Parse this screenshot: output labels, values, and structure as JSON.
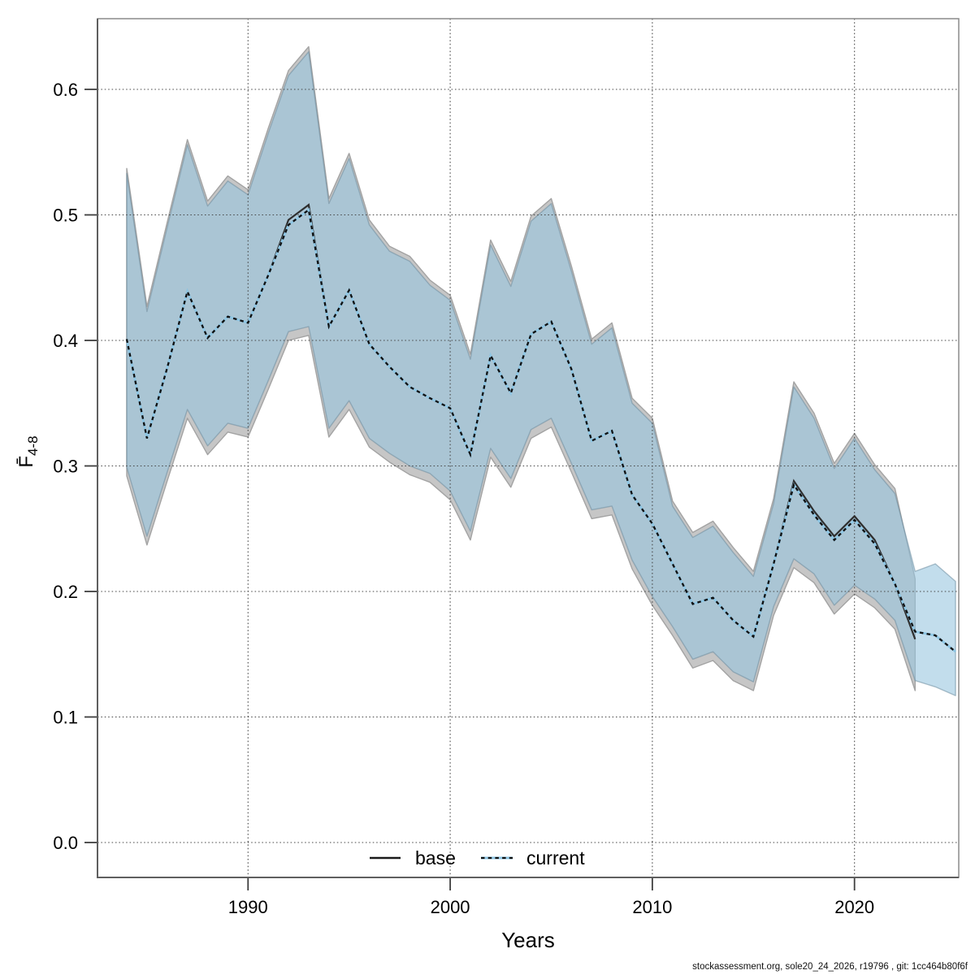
{
  "chart_data": {
    "type": "line",
    "title": "",
    "xlabel": "Years",
    "ylabel": {
      "base": "F̄",
      "sub": "4-8"
    },
    "x_ticks": [
      1990,
      2000,
      2010,
      2020
    ],
    "y_ticks": {
      "values": [
        0.0,
        0.1,
        0.2,
        0.3,
        0.4,
        0.5,
        0.6
      ],
      "labels": [
        "0.0",
        "0.1",
        "0.2",
        "0.3",
        "0.4",
        "0.5",
        "0.6"
      ]
    },
    "xlim": [
      1983.4,
      2026
    ],
    "ylim": [
      0,
      0.656
    ],
    "grid": true,
    "years": [
      1984,
      1985,
      1986,
      1987,
      1988,
      1989,
      1990,
      1991,
      1992,
      1993,
      1994,
      1995,
      1996,
      1997,
      1998,
      1999,
      2000,
      2001,
      2002,
      2003,
      2004,
      2005,
      2006,
      2007,
      2008,
      2009,
      2010,
      2011,
      2012,
      2013,
      2014,
      2015,
      2016,
      2017,
      2018,
      2019,
      2020,
      2021,
      2022,
      2023,
      2024,
      2025
    ],
    "series": [
      {
        "name": "base",
        "line_style": "solid",
        "line_color": "#2e2e2e",
        "band_fill": "#c6c6c6",
        "band_stroke": "#a3a3a3",
        "values": [
          0.401,
          0.322,
          0.378,
          0.439,
          0.402,
          0.419,
          0.414,
          0.452,
          0.496,
          0.508,
          0.411,
          0.44,
          0.397,
          0.379,
          0.363,
          0.354,
          0.346,
          0.309,
          0.388,
          0.358,
          0.405,
          0.415,
          0.377,
          0.32,
          0.328,
          0.277,
          0.254,
          0.222,
          0.19,
          0.195,
          0.177,
          0.164,
          0.222,
          0.288,
          0.264,
          0.244,
          0.26,
          0.241,
          0.206,
          0.162
        ],
        "upper": [
          0.537,
          0.427,
          0.494,
          0.56,
          0.511,
          0.531,
          0.52,
          0.569,
          0.615,
          0.634,
          0.513,
          0.549,
          0.496,
          0.475,
          0.467,
          0.448,
          0.436,
          0.389,
          0.48,
          0.447,
          0.499,
          0.513,
          0.459,
          0.401,
          0.414,
          0.354,
          0.338,
          0.272,
          0.247,
          0.256,
          0.235,
          0.216,
          0.274,
          0.367,
          0.342,
          0.302,
          0.326,
          0.301,
          0.282,
          0.21
        ],
        "lower": [
          0.292,
          0.237,
          0.288,
          0.338,
          0.309,
          0.327,
          0.323,
          0.361,
          0.4,
          0.404,
          0.323,
          0.345,
          0.315,
          0.303,
          0.293,
          0.287,
          0.273,
          0.241,
          0.307,
          0.283,
          0.322,
          0.331,
          0.295,
          0.258,
          0.261,
          0.218,
          0.189,
          0.165,
          0.139,
          0.145,
          0.129,
          0.121,
          0.181,
          0.219,
          0.207,
          0.182,
          0.198,
          0.187,
          0.17,
          0.121
        ]
      },
      {
        "name": "current",
        "line_style": "dashed",
        "line_color": "#101010",
        "line_under_color": "#8ec6e4",
        "band_fill": "rgba(150,196,222,0.58)",
        "band_stroke": "rgba(110,140,158,0.55)",
        "values": [
          0.401,
          0.322,
          0.378,
          0.439,
          0.402,
          0.419,
          0.414,
          0.452,
          0.492,
          0.504,
          0.411,
          0.44,
          0.397,
          0.379,
          0.363,
          0.354,
          0.346,
          0.309,
          0.388,
          0.358,
          0.405,
          0.415,
          0.377,
          0.32,
          0.328,
          0.277,
          0.254,
          0.222,
          0.19,
          0.195,
          0.177,
          0.164,
          0.222,
          0.285,
          0.261,
          0.241,
          0.257,
          0.238,
          0.206,
          0.168,
          0.165,
          0.152
        ],
        "upper": [
          0.533,
          0.423,
          0.49,
          0.556,
          0.507,
          0.527,
          0.516,
          0.565,
          0.611,
          0.63,
          0.509,
          0.545,
          0.492,
          0.471,
          0.463,
          0.444,
          0.432,
          0.385,
          0.476,
          0.443,
          0.495,
          0.509,
          0.455,
          0.397,
          0.41,
          0.35,
          0.334,
          0.268,
          0.243,
          0.252,
          0.231,
          0.212,
          0.27,
          0.363,
          0.338,
          0.298,
          0.322,
          0.297,
          0.278,
          0.216,
          0.222,
          0.208
        ],
        "lower": [
          0.299,
          0.244,
          0.295,
          0.345,
          0.316,
          0.334,
          0.33,
          0.368,
          0.407,
          0.411,
          0.33,
          0.352,
          0.322,
          0.31,
          0.3,
          0.294,
          0.28,
          0.248,
          0.314,
          0.29,
          0.329,
          0.338,
          0.302,
          0.265,
          0.268,
          0.225,
          0.196,
          0.172,
          0.146,
          0.152,
          0.136,
          0.128,
          0.188,
          0.226,
          0.214,
          0.189,
          0.205,
          0.194,
          0.177,
          0.129,
          0.124,
          0.117
        ]
      }
    ],
    "legend": {
      "position": "bottom-center",
      "entries": [
        {
          "label": "base",
          "line": "solid",
          "color": "#1a1a1a"
        },
        {
          "label": "current",
          "line": "dashed",
          "color": "#101010",
          "under_color": "#8ec6e4"
        }
      ]
    },
    "colors": {
      "band_current_over_base": "#a9c6d6",
      "band_forecast": "#cfe5f2",
      "band_base_gray": "#c6c6c6",
      "grid": "#444444",
      "frame": "#8a8a8a"
    }
  },
  "footer": {
    "credit": "stockassessment.org, sole20_24_2026, r19796 , git: 1cc464b80f6f"
  }
}
